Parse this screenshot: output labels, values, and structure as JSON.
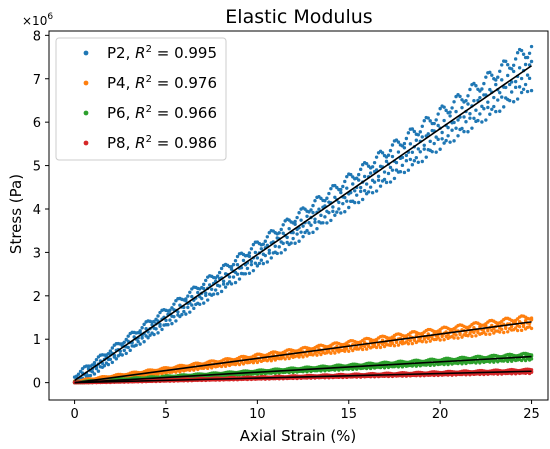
{
  "chart_data": {
    "type": "scatter",
    "title": "Elastic Modulus",
    "xlabel": "Axial Strain (%)",
    "ylabel": "Stress (Pa)",
    "y_scale_note": "×10^6",
    "xlim": [
      -1.4,
      25.9
    ],
    "ylim": [
      -0.4,
      8.1
    ],
    "y_units_multiplier": 1000000,
    "x_ticks": [
      0,
      5,
      10,
      15,
      20,
      25
    ],
    "y_ticks": [
      0,
      1,
      2,
      3,
      4,
      5,
      6,
      7,
      8
    ],
    "grid": false,
    "legend_position": "top-left",
    "series": [
      {
        "name": "P2",
        "r2": "0.995",
        "color": "#1f77b4",
        "fit_slope": 0.29,
        "fit_intercept": 0.05,
        "band": 0.34,
        "x_end": 25
      },
      {
        "name": "P4",
        "r2": "0.976",
        "color": "#ff7f0e",
        "fit_slope": 0.056,
        "fit_intercept": 0.0,
        "band": 0.1,
        "x_end": 25
      },
      {
        "name": "P6",
        "r2": "0.966",
        "color": "#2ca02c",
        "fit_slope": 0.024,
        "fit_intercept": 0.0,
        "band": 0.05,
        "x_end": 25
      },
      {
        "name": "P8",
        "r2": "0.986",
        "color": "#d62728",
        "fit_slope": 0.0105,
        "fit_intercept": 0.0,
        "band": 0.03,
        "x_end": 25
      }
    ]
  }
}
